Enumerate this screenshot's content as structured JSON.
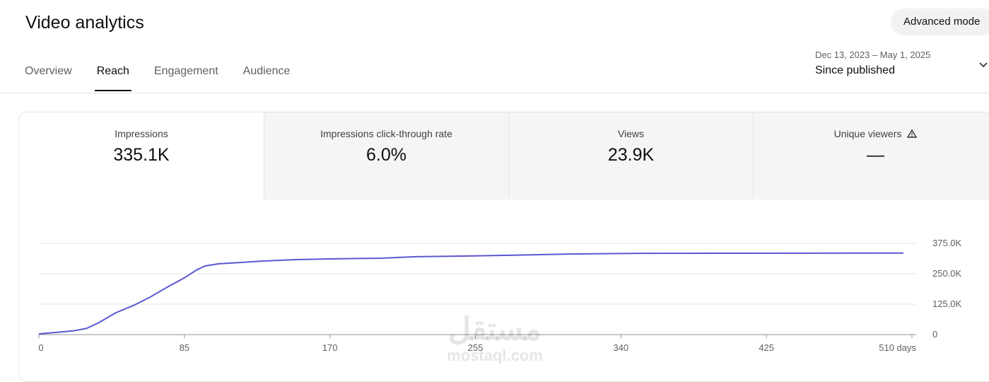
{
  "header": {
    "title": "Video analytics",
    "button": "Advanced mode"
  },
  "tabs": [
    {
      "label": "Overview",
      "active": false
    },
    {
      "label": "Reach",
      "active": true
    },
    {
      "label": "Engagement",
      "active": false
    },
    {
      "label": "Audience",
      "active": false
    }
  ],
  "date_range": {
    "range": "Dec 13, 2023 – May 1, 2025",
    "label": "Since published"
  },
  "metrics": [
    {
      "label": "Impressions",
      "value": "335.1K",
      "selected": true
    },
    {
      "label": "Impressions click-through rate",
      "value": "6.0%",
      "selected": false
    },
    {
      "label": "Views",
      "value": "23.9K",
      "selected": false
    },
    {
      "label": "Unique viewers",
      "value": "—",
      "selected": false,
      "warning": true
    }
  ],
  "watermark": [
    "مستقل",
    "mostaql.com"
  ],
  "chart_data": {
    "type": "line",
    "x": [
      0,
      10,
      20,
      28,
      35,
      45,
      55,
      65,
      75,
      85,
      92,
      97,
      105,
      120,
      130,
      150,
      170,
      200,
      220,
      250,
      275,
      310,
      350,
      505
    ],
    "series": [
      {
        "name": "Impressions",
        "color": "#5b57d1",
        "values": [
          3000,
          9000,
          15000,
          26000,
          49000,
          90000,
          119000,
          154000,
          195000,
          233000,
          265000,
          282000,
          291000,
          297000,
          302000,
          308000,
          311000,
          314000,
          320000,
          323000,
          326000,
          331000,
          334000,
          335100
        ]
      }
    ],
    "xlim": [
      0,
      510
    ],
    "xticks": [
      0,
      85,
      170,
      255,
      340,
      425,
      {
        "value": 510,
        "label": "510 days"
      }
    ],
    "ylim": [
      0,
      375000
    ],
    "yticks": [
      0,
      {
        "value": 125000,
        "label": "125.0K"
      },
      {
        "value": 250000,
        "label": "250.0K"
      },
      {
        "value": 375000,
        "label": "375.0K"
      }
    ],
    "grid": true
  }
}
